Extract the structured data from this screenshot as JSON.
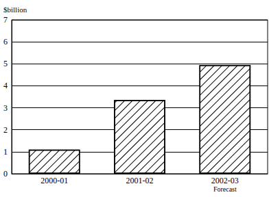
{
  "chart_data": {
    "type": "bar",
    "y_label": "$billion",
    "categories": [
      "2000-01",
      "2001-02",
      "2002-03\nForecast"
    ],
    "values": [
      1.1,
      3.35,
      4.95
    ],
    "color": "#000000",
    "ylim": [
      0,
      7
    ],
    "yticks": [
      0,
      1,
      2,
      3,
      4,
      5,
      6,
      7
    ],
    "grid": true
  }
}
